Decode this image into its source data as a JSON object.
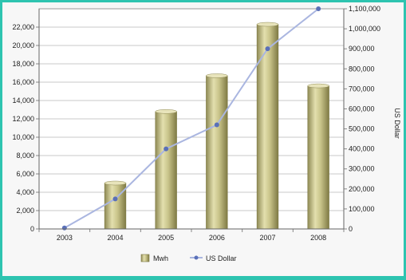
{
  "chart_data": {
    "type": "bar",
    "categories": [
      "2003",
      "2004",
      "2005",
      "2006",
      "2007",
      "2008"
    ],
    "series": [
      {
        "name": "Mwh",
        "type": "bar",
        "axis": "left",
        "values": [
          0,
          5000,
          12800,
          16700,
          22300,
          15600
        ],
        "color": "#c9c48a"
      },
      {
        "name": "US Dollar",
        "type": "line",
        "axis": "right",
        "values": [
          5000,
          150000,
          400000,
          520000,
          900000,
          1100000
        ],
        "color": "#5a70b8",
        "line_color": "#aab6e0"
      }
    ],
    "y_left": {
      "ylim": [
        0,
        24000
      ],
      "ticks": [
        0,
        2000,
        4000,
        6000,
        8000,
        10000,
        12000,
        14000,
        16000,
        18000,
        20000,
        22000
      ],
      "tick_labels": [
        "0",
        "2,000",
        "4,000",
        "6,000",
        "8,000",
        "10,000",
        "12,000",
        "14,000",
        "16,000",
        "18,000",
        "20,000",
        "22,000"
      ]
    },
    "y_right": {
      "ylim": [
        0,
        1100000
      ],
      "label": "US Dollar",
      "ticks": [
        0,
        100000,
        200000,
        300000,
        400000,
        500000,
        600000,
        700000,
        800000,
        900000,
        1000000,
        1100000
      ],
      "tick_labels": [
        "0",
        "100,000",
        "200,000",
        "300,000",
        "400,000",
        "500,000",
        "600,000",
        "700,000",
        "800,000",
        "900,000",
        "1,000,000",
        "1,100,000"
      ]
    },
    "grid": true,
    "legend_position": "bottom",
    "legend": [
      "Mwh",
      "US Dollar"
    ]
  }
}
